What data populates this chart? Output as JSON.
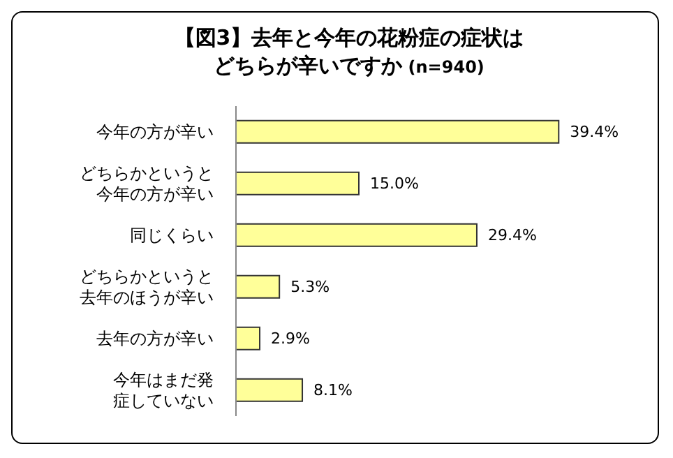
{
  "chart_data": {
    "type": "bar",
    "orientation": "horizontal",
    "title": "【図3】去年と今年の花粉症の症状はどちらが辛いですか",
    "subtitle": "(n=940)",
    "categories": [
      "今年の方が辛い",
      "どちらかというと今年の方が辛い",
      "同じくらい",
      "どちらかというと去年のほうが辛い",
      "去年の方が辛い",
      "今年はまだ発症していない"
    ],
    "values": [
      39.4,
      15.0,
      29.4,
      5.3,
      2.9,
      8.1
    ],
    "value_labels": [
      "39.4%",
      "15.0%",
      "29.4%",
      "5.3%",
      "2.9%",
      "8.1%"
    ],
    "color": "#ffff99",
    "grid": false,
    "legend": false
  }
}
